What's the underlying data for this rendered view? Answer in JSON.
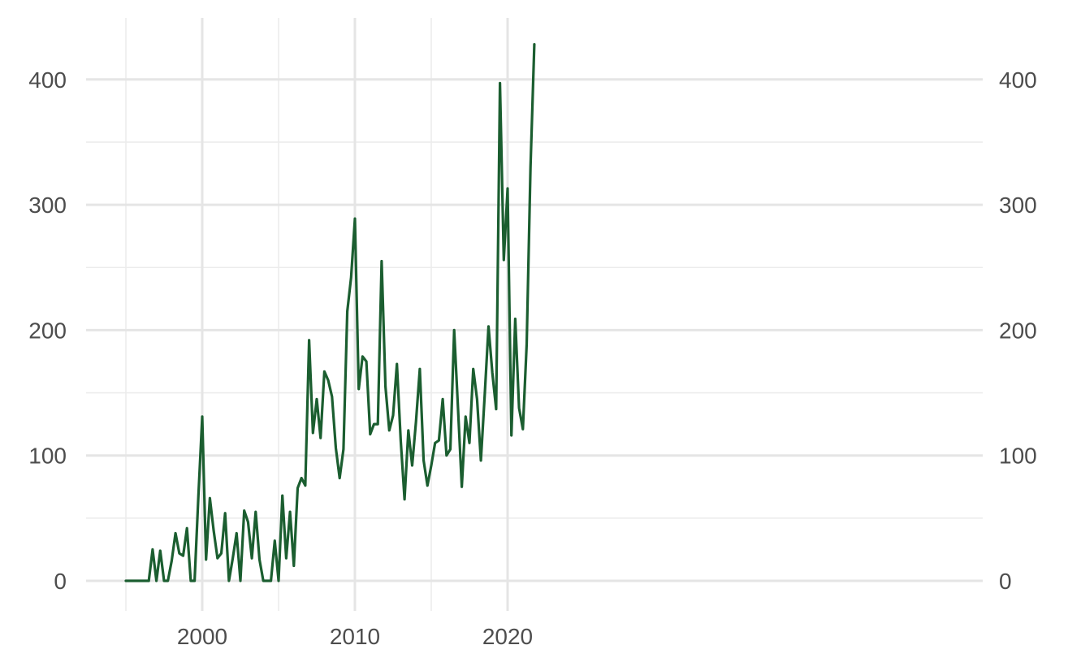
{
  "chart_data": {
    "type": "line",
    "title": "",
    "xlabel": "",
    "ylabel": "",
    "xlim": [
      1995,
      2023
    ],
    "ylim": [
      -25,
      450
    ],
    "x_ticks": [
      2000,
      2010,
      2020
    ],
    "x_minor_ticks": [
      1995,
      2005,
      2015
    ],
    "y_ticks": [
      0,
      100,
      200,
      300,
      400
    ],
    "y_minor_ticks": [
      50,
      150,
      250,
      350
    ],
    "x_tick_labels": [
      "2000",
      "2010",
      "2020"
    ],
    "y_tick_labels": [
      "0",
      "100",
      "200",
      "300",
      "400"
    ],
    "grid": true,
    "legend": "none",
    "secondary_y_axis": "right, same scale",
    "line_color": "#1b5e30",
    "series": [
      {
        "x": [
          1995.0,
          1995.5,
          1996.0,
          1996.5,
          1996.75,
          1997.0,
          1997.25,
          1997.5,
          1997.75,
          1998.0,
          1998.25,
          1998.5,
          1998.75,
          1999.0,
          1999.25,
          1999.5,
          1999.75,
          2000.0,
          2000.25,
          2000.5,
          2000.75,
          2001.0,
          2001.25,
          2001.5,
          2001.75,
          2002.0,
          2002.25,
          2002.5,
          2002.75,
          2003.0,
          2003.25,
          2003.5,
          2003.75,
          2004.0,
          2004.25,
          2004.5,
          2004.75,
          2005.0,
          2005.25,
          2005.5,
          2005.75,
          2006.0,
          2006.25,
          2006.5,
          2006.75,
          2007.0,
          2007.25,
          2007.5,
          2007.75,
          2008.0,
          2008.25,
          2008.5,
          2008.75,
          2009.0,
          2009.25,
          2009.5,
          2009.75,
          2010.0,
          2010.25,
          2010.5,
          2010.75,
          2011.0,
          2011.25,
          2011.5,
          2011.75,
          2012.0,
          2012.25,
          2012.5,
          2012.75,
          2013.0,
          2013.25,
          2013.5,
          2013.75,
          2014.0,
          2014.25,
          2014.5,
          2014.75,
          2015.0,
          2015.25,
          2015.5,
          2015.75,
          2016.0,
          2016.25,
          2016.5,
          2016.75,
          2017.0,
          2017.25,
          2017.5,
          2017.75,
          2018.0,
          2018.25,
          2018.5,
          2018.75,
          2019.0,
          2019.25,
          2019.5,
          2019.75,
          2020.0,
          2020.25,
          2020.5,
          2020.75,
          2021.0,
          2021.25,
          2021.5,
          2021.75
        ],
        "values": [
          0,
          0,
          0,
          0,
          25,
          0,
          24,
          0,
          0,
          16,
          38,
          22,
          20,
          42,
          0,
          0,
          68,
          131,
          17,
          66,
          40,
          18,
          22,
          54,
          0,
          18,
          38,
          0,
          56,
          47,
          18,
          55,
          17,
          0,
          0,
          0,
          32,
          0,
          68,
          18,
          55,
          12,
          74,
          82,
          76,
          192,
          118,
          145,
          114,
          167,
          160,
          147,
          106,
          82,
          105,
          215,
          242,
          289,
          153,
          179,
          175,
          117,
          125,
          125,
          255,
          155,
          120,
          132,
          173,
          112,
          65,
          120,
          92,
          127,
          169,
          96,
          76,
          92,
          110,
          112,
          145,
          100,
          105,
          200,
          138,
          75,
          131,
          110,
          169,
          145,
          96,
          148,
          203,
          166,
          137,
          397,
          256,
          313,
          116,
          209,
          138,
          121,
          189,
          330,
          428
        ]
      }
    ]
  }
}
